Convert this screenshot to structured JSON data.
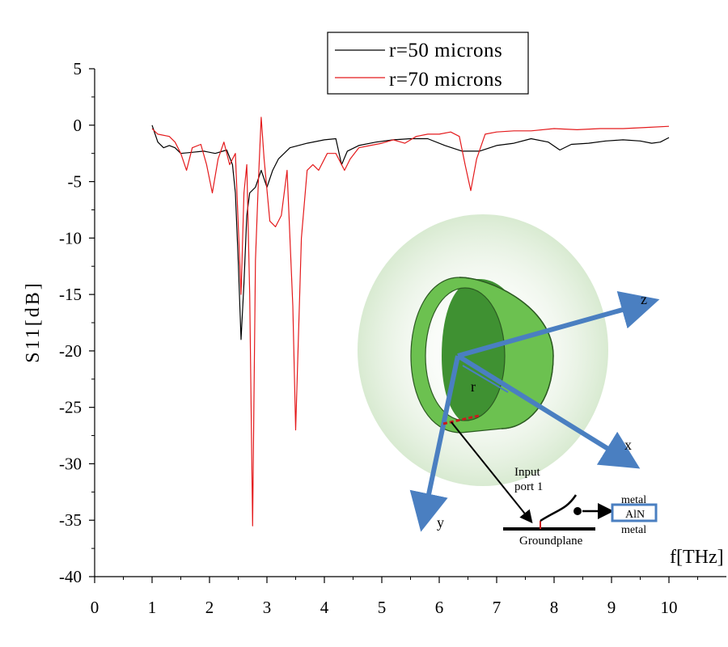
{
  "chart_data": {
    "type": "line",
    "xlabel": "f[THz]",
    "ylabel": "S11[dB]",
    "xlim": [
      0,
      11
    ],
    "ylim": [
      -40,
      5
    ],
    "xticks": [
      0,
      1,
      2,
      3,
      4,
      5,
      6,
      7,
      8,
      9,
      10
    ],
    "yticks": [
      5,
      0,
      -5,
      -10,
      -15,
      -20,
      -25,
      -30,
      -35,
      -40
    ],
    "grid": false,
    "legend_position": "top-center",
    "series": [
      {
        "name": "r=50 microns",
        "color": "#000000",
        "points": [
          [
            1.0,
            0.0
          ],
          [
            1.1,
            -1.5
          ],
          [
            1.2,
            -2.0
          ],
          [
            1.3,
            -1.8
          ],
          [
            1.4,
            -2.0
          ],
          [
            1.5,
            -2.5
          ],
          [
            1.7,
            -2.4
          ],
          [
            1.9,
            -2.3
          ],
          [
            2.1,
            -2.5
          ],
          [
            2.3,
            -2.2
          ],
          [
            2.4,
            -3.5
          ],
          [
            2.45,
            -6.0
          ],
          [
            2.5,
            -12.0
          ],
          [
            2.55,
            -19.0
          ],
          [
            2.6,
            -14.0
          ],
          [
            2.65,
            -8.0
          ],
          [
            2.7,
            -6.0
          ],
          [
            2.8,
            -5.5
          ],
          [
            2.9,
            -4.0
          ],
          [
            3.0,
            -5.5
          ],
          [
            3.1,
            -4.0
          ],
          [
            3.2,
            -3.0
          ],
          [
            3.4,
            -2.0
          ],
          [
            3.7,
            -1.6
          ],
          [
            4.0,
            -1.3
          ],
          [
            4.2,
            -1.2
          ],
          [
            4.3,
            -3.5
          ],
          [
            4.4,
            -2.3
          ],
          [
            4.6,
            -1.8
          ],
          [
            4.9,
            -1.5
          ],
          [
            5.2,
            -1.3
          ],
          [
            5.5,
            -1.2
          ],
          [
            5.8,
            -1.2
          ],
          [
            6.1,
            -1.8
          ],
          [
            6.4,
            -2.3
          ],
          [
            6.7,
            -2.3
          ],
          [
            7.0,
            -1.8
          ],
          [
            7.3,
            -1.6
          ],
          [
            7.6,
            -1.2
          ],
          [
            7.9,
            -1.5
          ],
          [
            8.1,
            -2.2
          ],
          [
            8.3,
            -1.7
          ],
          [
            8.6,
            -1.6
          ],
          [
            8.9,
            -1.4
          ],
          [
            9.2,
            -1.3
          ],
          [
            9.5,
            -1.4
          ],
          [
            9.7,
            -1.6
          ],
          [
            9.85,
            -1.5
          ],
          [
            10.0,
            -1.1
          ]
        ]
      },
      {
        "name": "r=70 microns",
        "color": "#e41a1c",
        "points": [
          [
            1.0,
            -0.3
          ],
          [
            1.1,
            -0.8
          ],
          [
            1.3,
            -1.0
          ],
          [
            1.4,
            -1.5
          ],
          [
            1.5,
            -2.5
          ],
          [
            1.6,
            -4.0
          ],
          [
            1.7,
            -2.0
          ],
          [
            1.85,
            -1.7
          ],
          [
            1.95,
            -3.5
          ],
          [
            2.05,
            -6.0
          ],
          [
            2.15,
            -3.0
          ],
          [
            2.25,
            -1.5
          ],
          [
            2.35,
            -3.5
          ],
          [
            2.45,
            -2.5
          ],
          [
            2.55,
            -15.0
          ],
          [
            2.6,
            -6.0
          ],
          [
            2.65,
            -3.5
          ],
          [
            2.7,
            -15.0
          ],
          [
            2.75,
            -35.5
          ],
          [
            2.8,
            -12.0
          ],
          [
            2.85,
            -5.0
          ],
          [
            2.9,
            0.7
          ],
          [
            2.95,
            -3.0
          ],
          [
            3.05,
            -8.5
          ],
          [
            3.15,
            -9.0
          ],
          [
            3.25,
            -8.0
          ],
          [
            3.35,
            -4.0
          ],
          [
            3.45,
            -16.0
          ],
          [
            3.5,
            -27.0
          ],
          [
            3.6,
            -10.0
          ],
          [
            3.7,
            -4.0
          ],
          [
            3.8,
            -3.5
          ],
          [
            3.9,
            -4.0
          ],
          [
            4.05,
            -2.5
          ],
          [
            4.2,
            -2.5
          ],
          [
            4.35,
            -4.0
          ],
          [
            4.45,
            -3.0
          ],
          [
            4.6,
            -2.0
          ],
          [
            4.8,
            -1.8
          ],
          [
            5.0,
            -1.6
          ],
          [
            5.2,
            -1.3
          ],
          [
            5.4,
            -1.6
          ],
          [
            5.6,
            -1.0
          ],
          [
            5.8,
            -0.8
          ],
          [
            6.0,
            -0.8
          ],
          [
            6.2,
            -0.6
          ],
          [
            6.35,
            -1.0
          ],
          [
            6.45,
            -3.5
          ],
          [
            6.55,
            -5.8
          ],
          [
            6.65,
            -3.0
          ],
          [
            6.8,
            -0.8
          ],
          [
            7.0,
            -0.6
          ],
          [
            7.3,
            -0.5
          ],
          [
            7.6,
            -0.5
          ],
          [
            8.0,
            -0.3
          ],
          [
            8.4,
            -0.4
          ],
          [
            8.8,
            -0.3
          ],
          [
            9.2,
            -0.3
          ],
          [
            9.6,
            -0.2
          ],
          [
            10.0,
            -0.1
          ]
        ]
      }
    ],
    "inset": {
      "axis_labels": [
        "z",
        "x",
        "y",
        "r"
      ],
      "input_port_label": "Input\nport 1",
      "groundplane_label": "Groundplane",
      "layer_labels": [
        "metal",
        "AlN",
        "metal"
      ],
      "ring_color": "#5fb84a",
      "axis_color": "#4a7fc1"
    }
  }
}
